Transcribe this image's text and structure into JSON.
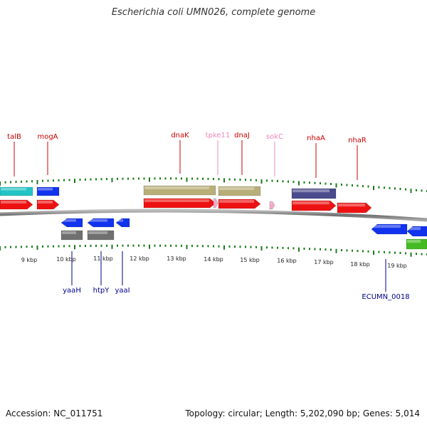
{
  "title": "Escherichia coli UMN026, complete genome",
  "footer": {
    "accession": "Accession: NC_011751",
    "summary": "Topology: circular; Length: 5,202,090 bp; Genes: 5,014"
  },
  "colors": {
    "tick": "#1a7a1a",
    "label_red": "#cc0000",
    "label_pink": "#ee88bb",
    "label_blue": "#00008b",
    "backbone": "#8a8a8a"
  },
  "kbp_labels": [
    "9 kbp",
    "10 kbp",
    "11 kbp",
    "12 kbp",
    "13 kbp",
    "14 kbp",
    "15 kbp",
    "16 kbp",
    "17 kbp",
    "18 kbp",
    "19 kbp"
  ],
  "gene_labels_top": [
    {
      "name": "talB",
      "color": "#cc0000"
    },
    {
      "name": "mogA",
      "color": "#cc0000"
    },
    {
      "name": "dnaK",
      "color": "#cc0000"
    },
    {
      "name": "tpke11",
      "color": "#ee88bb"
    },
    {
      "name": "dnaJ",
      "color": "#cc0000"
    },
    {
      "name": "sokC",
      "color": "#ee88bb"
    },
    {
      "name": "nhaA",
      "color": "#cc0000"
    },
    {
      "name": "nhaR",
      "color": "#cc0000"
    }
  ],
  "gene_labels_bottom": [
    {
      "name": "yaaH",
      "color": "#00008b"
    },
    {
      "name": "htpY",
      "color": "#00008b"
    },
    {
      "name": "yaaI",
      "color": "#00008b"
    },
    {
      "name": "ECUMN_0018",
      "color": "#00008b"
    }
  ],
  "track_colors": {
    "cds": "#ee1111",
    "cds_minus": "#1133ee",
    "ncrna": "#f4a6c8",
    "cyan": "#22c4c4",
    "khaki": "#b8ae78",
    "purple": "#4a4a8c",
    "gray": "#707070",
    "green": "#44bb22"
  }
}
